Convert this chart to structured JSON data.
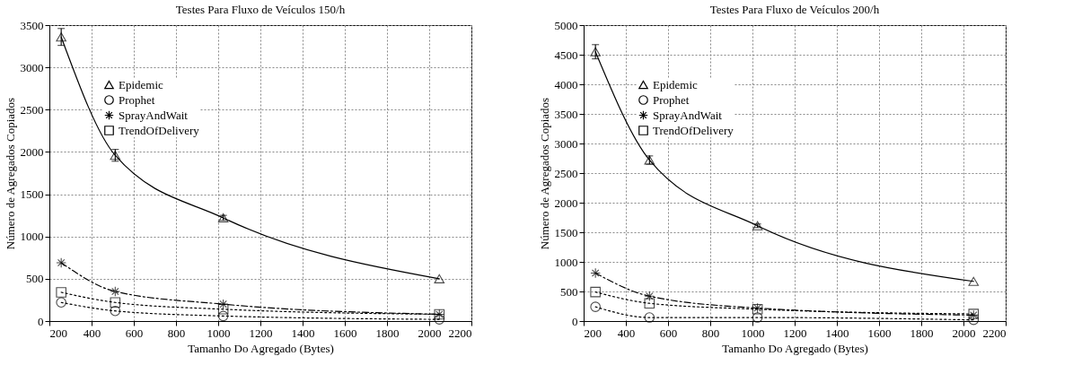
{
  "chart_data": [
    {
      "type": "line",
      "title": "Testes Para Fluxo de Veículos 150/h",
      "xlabel": "Tamanho Do Agregado (Bytes)",
      "ylabel": "Número de Agregados Copiados",
      "x": [
        256,
        512,
        1024,
        2048
      ],
      "xlim": [
        200,
        2200
      ],
      "xticks": [
        200,
        400,
        600,
        800,
        1000,
        1200,
        1400,
        1600,
        1800,
        2000,
        2200
      ],
      "ylim": [
        0,
        3500
      ],
      "yticks": [
        0,
        500,
        1000,
        1500,
        2000,
        2500,
        3000,
        3500
      ],
      "grid": true,
      "legend": "top left",
      "series": [
        {
          "name": "Epidemic",
          "color": "#000000",
          "marker": "triangle",
          "line_style": "solid",
          "values": [
            3360,
            1960,
            1220,
            500
          ],
          "errors": [
            100,
            70,
            30,
            null
          ]
        },
        {
          "name": "Prophet",
          "color": "#000000",
          "marker": "circle",
          "line_style": "dotted",
          "values": [
            220,
            120,
            60,
            20
          ]
        },
        {
          "name": "SprayAndWait",
          "color": "#000000",
          "marker": "cross",
          "line_style": "dashed",
          "values": [
            690,
            350,
            200,
            80
          ]
        },
        {
          "name": "TrendOfDelivery",
          "color": "#000000",
          "marker": "square",
          "line_style": "dotted",
          "values": [
            340,
            220,
            140,
            80
          ]
        }
      ]
    },
    {
      "type": "line",
      "title": "Testes Para Fluxo de Veículos 200/h",
      "xlabel": "Tamanho Do Agregado (Bytes)",
      "ylabel": "Número de Agregados Copiados",
      "x": [
        256,
        512,
        1024,
        2048
      ],
      "xlim": [
        200,
        2200
      ],
      "xticks": [
        200,
        400,
        600,
        800,
        1000,
        1200,
        1400,
        1600,
        1800,
        2000,
        2200
      ],
      "ylim": [
        0,
        5000
      ],
      "yticks": [
        0,
        500,
        1000,
        1500,
        2000,
        2500,
        3000,
        3500,
        4000,
        4500,
        5000
      ],
      "grid": true,
      "legend": "top left",
      "series": [
        {
          "name": "Epidemic",
          "color": "#000000",
          "marker": "triangle",
          "line_style": "solid",
          "values": [
            4550,
            2720,
            1610,
            670
          ],
          "errors": [
            120,
            70,
            30,
            null
          ]
        },
        {
          "name": "Prophet",
          "color": "#000000",
          "marker": "circle",
          "line_style": "dotted",
          "values": [
            240,
            60,
            60,
            20
          ]
        },
        {
          "name": "SprayAndWait",
          "color": "#000000",
          "marker": "cross",
          "line_style": "dashed",
          "values": [
            810,
            420,
            220,
            100
          ]
        },
        {
          "name": "TrendOfDelivery",
          "color": "#000000",
          "marker": "square",
          "line_style": "dotted",
          "values": [
            490,
            300,
            200,
            120
          ]
        }
      ]
    }
  ]
}
